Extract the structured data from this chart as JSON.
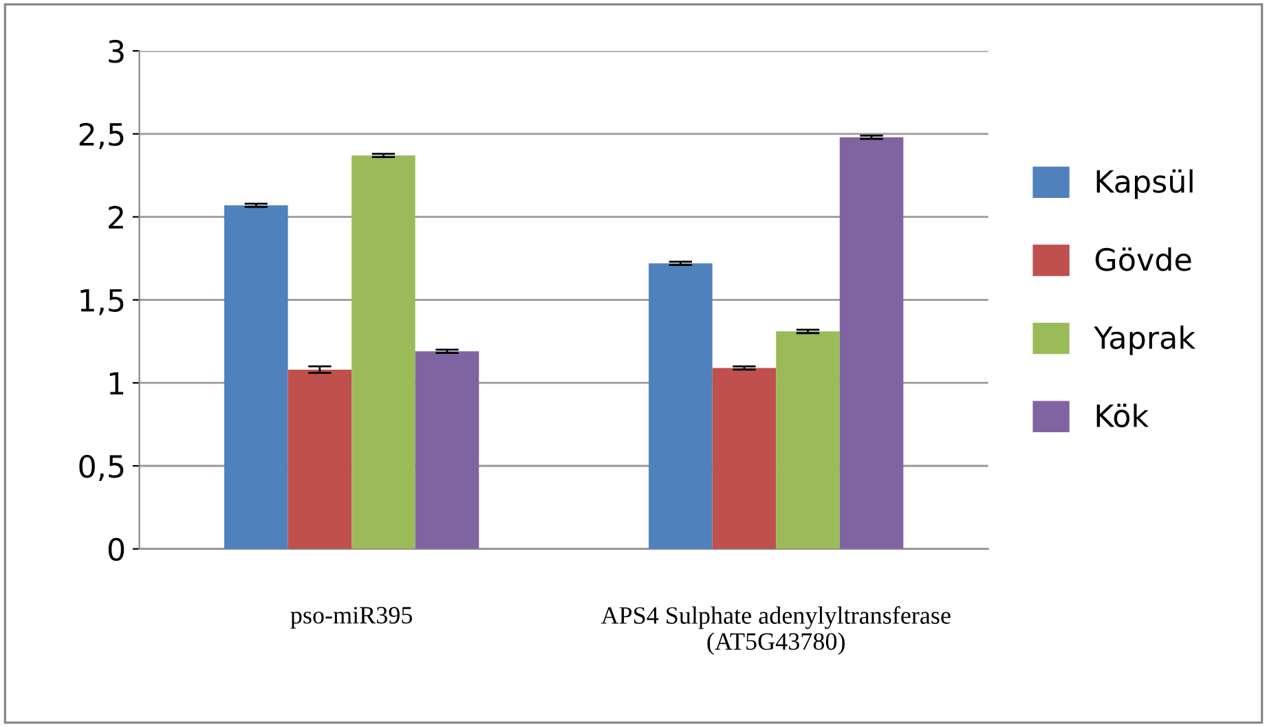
{
  "chart_data": {
    "type": "bar",
    "categories": [
      "pso-miR395",
      "APS4 Sulphate adenylyltransferase\n(AT5G43780)"
    ],
    "series": [
      {
        "name": "Kapsül",
        "color": "#4f81bd",
        "values": [
          2.07,
          1.72
        ],
        "errors": [
          0.01,
          0.01
        ]
      },
      {
        "name": "Gövde",
        "color": "#c0504d",
        "values": [
          1.08,
          1.09
        ],
        "errors": [
          0.02,
          0.01
        ]
      },
      {
        "name": "Yaprak",
        "color": "#9bbb59",
        "values": [
          2.37,
          1.31
        ],
        "errors": [
          0.01,
          0.01
        ]
      },
      {
        "name": "Kök",
        "color": "#8064a2",
        "values": [
          1.19,
          2.48
        ],
        "errors": [
          0.01,
          0.01
        ]
      }
    ],
    "ylim": [
      0,
      3
    ],
    "yticks": [
      0,
      {
        "value": 0.5,
        "label": "0,5"
      },
      1,
      {
        "value": 1.5,
        "label": "1,5"
      },
      2,
      {
        "value": 2.5,
        "label": "2,5"
      },
      3
    ],
    "grid": "y",
    "legend": "right"
  }
}
